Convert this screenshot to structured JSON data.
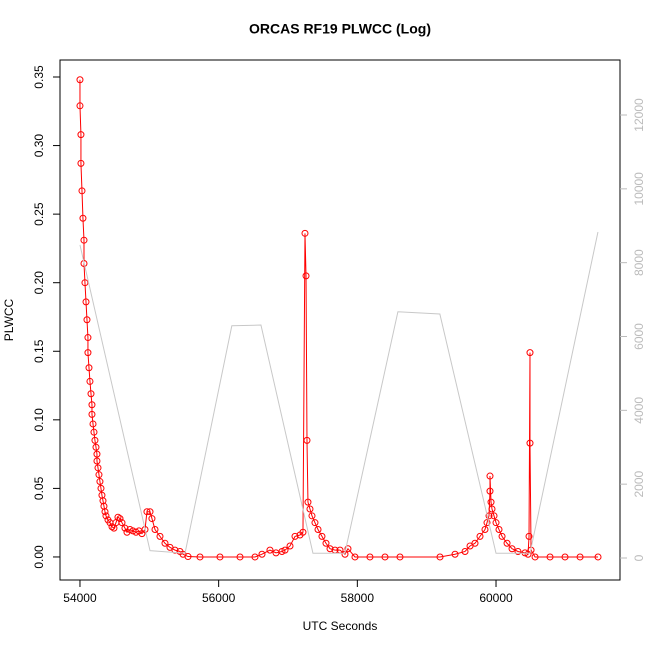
{
  "chart_data": {
    "type": "line",
    "title": "ORCAS RF19 PLWCC (Log)",
    "x_label": "UTC Seconds",
    "y_label": "PLWCC",
    "xlim": [
      53712,
      61788
    ],
    "ylim": [
      -0.0168,
      0.3624
    ],
    "y2lim": [
      -596,
      13490
    ],
    "xticks": [
      54000,
      56000,
      58000,
      60000
    ],
    "yticks": [
      {
        "value": 0,
        "label": "0.00"
      },
      {
        "value": 0.05,
        "label": "0.05"
      },
      {
        "value": 0.1,
        "label": "0.10"
      },
      {
        "value": 0.15,
        "label": "0.15"
      },
      {
        "value": 0.2,
        "label": "0.20"
      },
      {
        "value": 0.25,
        "label": "0.25"
      },
      {
        "value": 0.3,
        "label": "0.30"
      },
      {
        "value": 0.35,
        "label": "0.35"
      }
    ],
    "y2ticks": [
      0,
      2000,
      4000,
      6000,
      8000,
      10000,
      12000
    ],
    "series": [
      {
        "color": "#ff0000",
        "marker": "circle",
        "x": [
          54000,
          54000,
          54014,
          54014,
          54029,
          54043,
          54058,
          54058,
          54072,
          54087,
          54101,
          54115,
          54115,
          54130,
          54144,
          54159,
          54173,
          54173,
          54188,
          54202,
          54216,
          54231,
          54245,
          54245,
          54260,
          54274,
          54288,
          54303,
          54317,
          54332,
          54346,
          54361,
          54375,
          54404,
          54433,
          54462,
          54490,
          54519,
          54548,
          54577,
          54606,
          54649,
          54678,
          54721,
          54764,
          54808,
          54851,
          54894,
          54938,
          54966,
          55010,
          55038,
          55082,
          55154,
          55226,
          55298,
          55370,
          55442,
          55486,
          55558,
          55731,
          56019,
          56308,
          56524,
          56625,
          56740,
          56827,
          56913,
          56957,
          57029,
          57101,
          57173,
          57216,
          57245,
          57260,
          57274,
          57288,
          57317,
          57346,
          57389,
          57433,
          57490,
          57548,
          57606,
          57678,
          57750,
          57822,
          57865,
          57966,
          58182,
          58399,
          58615,
          59192,
          59409,
          59553,
          59625,
          59697,
          59769,
          59841,
          59870,
          59899,
          59913,
          59913,
          59928,
          59942,
          59971,
          60000,
          60043,
          60087,
          60159,
          60231,
          60317,
          60418,
          60462,
          60476,
          60490,
          60490,
          60505,
          60563,
          60779,
          60995,
          61212,
          61471
        ],
        "values": [
          0.348,
          0.329,
          0.308,
          0.287,
          0.267,
          0.247,
          0.231,
          0.214,
          0.2,
          0.186,
          0.173,
          0.16,
          0.149,
          0.138,
          0.128,
          0.119,
          0.111,
          0.104,
          0.097,
          0.091,
          0.085,
          0.08,
          0.075,
          0.07,
          0.065,
          0.06,
          0.055,
          0.05,
          0.045,
          0.041,
          0.037,
          0.033,
          0.03,
          0.027,
          0.025,
          0.022,
          0.021,
          0.025,
          0.029,
          0.028,
          0.025,
          0.021,
          0.018,
          0.02,
          0.019,
          0.018,
          0.019,
          0.017,
          0.02,
          0.033,
          0.033,
          0.028,
          0.02,
          0.015,
          0.01,
          0.007,
          0.005,
          0.004,
          0.002,
          0.0003,
          0,
          0,
          0,
          0,
          0.002,
          0.005,
          0.003,
          0.004,
          0.005,
          0.008,
          0.015,
          0.016,
          0.018,
          0.236,
          0.205,
          0.085,
          0.04,
          0.035,
          0.03,
          0.025,
          0.02,
          0.015,
          0.01,
          0.006,
          0.005,
          0.005,
          0.002,
          0.006,
          0,
          0,
          0,
          0,
          0,
          0.002,
          0.004,
          0.008,
          0.01,
          0.015,
          0.02,
          0.025,
          0.03,
          0.048,
          0.059,
          0.04,
          0.035,
          0.03,
          0.025,
          0.02,
          0.015,
          0.01,
          0.006,
          0.004,
          0.003,
          0.002,
          0.015,
          0.149,
          0.083,
          0.005,
          0,
          0,
          0,
          0,
          0
        ]
      },
      {
        "color": "#c8c8c8",
        "axis": "y2",
        "x": [
          54000,
          55010,
          55515,
          56190,
          56610,
          57360,
          57820,
          58585,
          59190,
          60000,
          60490,
          61470
        ],
        "values": [
          8480,
          200,
          130,
          6290,
          6310,
          130,
          130,
          6670,
          6610,
          130,
          130,
          8830
        ]
      }
    ]
  }
}
